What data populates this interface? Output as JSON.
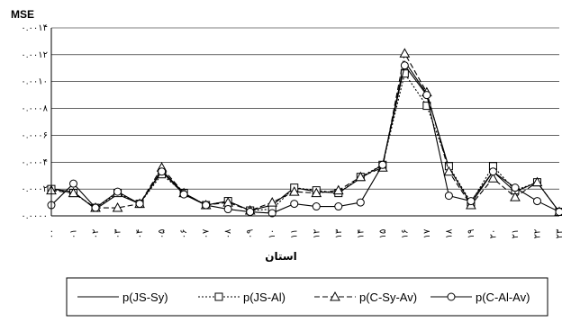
{
  "chart_data": {
    "type": "line",
    "title": "",
    "ylabel": "MSE",
    "xlabel": "استان",
    "ylim": [
      0,
      0.0014
    ],
    "yticks": [
      0,
      0.0002,
      0.0004,
      0.0006,
      0.0008,
      0.001,
      0.0012,
      0.0014
    ],
    "ytick_labels": [
      "۰.۰۰۰۰",
      "۰.۰۰۰۲",
      "۰.۰۰۰۴",
      "۰.۰۰۰۶",
      "۰.۰۰۰۸",
      "۰.۰۰۱۰",
      "۰.۰۰۱۲",
      "۰.۰۰۱۴"
    ],
    "x": [
      "۰۰",
      "۰۱",
      "۰۲",
      "۰۳",
      "۰۴",
      "۰۵",
      "۰۶",
      "۰۷",
      "۰۸",
      "۰۹",
      "۱۰",
      "۱۱",
      "۱۲",
      "۱۳",
      "۱۴",
      "۱۵",
      "۱۶",
      "۱۷",
      "۱۸",
      "۱۹",
      "۲۰",
      "۲۱",
      "۲۲",
      "۲۳"
    ],
    "grid": "horizontal",
    "legend_position": "bottom",
    "series": [
      {
        "name": "p(JS-Sy)",
        "style": "solid",
        "marker": "none",
        "values": [
          0.0002,
          0.00018,
          5e-05,
          0.00016,
          9e-05,
          0.00034,
          0.00017,
          8e-05,
          0.00011,
          4e-05,
          8e-05,
          0.00021,
          0.00018,
          0.00017,
          0.00028,
          0.00038,
          0.00115,
          0.00091,
          0.00036,
          9e-05,
          0.00033,
          0.00018,
          0.00025,
          3e-05
        ]
      },
      {
        "name": "p(JS-Al)",
        "style": "dotted",
        "marker": "square",
        "values": [
          0.0002,
          0.00017,
          6e-05,
          0.00017,
          9e-05,
          0.00031,
          0.00017,
          8e-05,
          0.00011,
          4e-05,
          5e-05,
          0.00021,
          0.00019,
          0.00017,
          0.00029,
          0.00038,
          0.00106,
          0.00082,
          0.00037,
          0.0001,
          0.00037,
          0.00019,
          0.00025,
          3e-05
        ]
      },
      {
        "name": "p(C-Sy-Av)",
        "style": "dashed",
        "marker": "triangle",
        "values": [
          0.00019,
          0.00017,
          6e-05,
          6e-05,
          9e-05,
          0.00036,
          0.00017,
          8e-05,
          0.0001,
          4e-05,
          0.0001,
          0.00018,
          0.00017,
          0.00019,
          0.00029,
          0.00036,
          0.00121,
          0.00092,
          0.00033,
          8e-05,
          0.00028,
          0.00014,
          0.00025,
          3e-05
        ]
      },
      {
        "name": "p(C-Al-Av)",
        "style": "solid",
        "marker": "circle",
        "values": [
          8e-05,
          0.00024,
          6e-05,
          0.00018,
          9e-05,
          0.00033,
          0.00016,
          8e-05,
          5e-05,
          3e-05,
          2e-05,
          9e-05,
          7e-05,
          7e-05,
          0.0001,
          0.00038,
          0.00112,
          0.0009,
          0.00015,
          0.00011,
          0.00033,
          0.00021,
          0.00011,
          3e-05
        ]
      }
    ]
  }
}
